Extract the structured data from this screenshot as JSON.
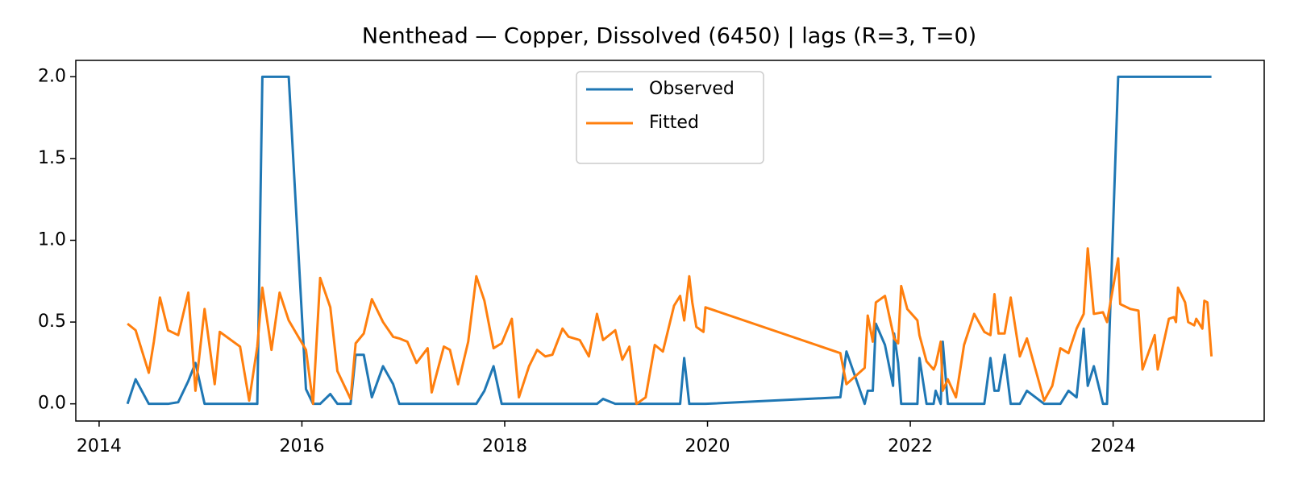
{
  "chart_data": {
    "type": "line",
    "title": "Nenthead — Copper, Dissolved (6450) | lags (R=3, T=0)",
    "x": [
      2014.28,
      2014.36,
      2014.49,
      2014.54,
      2014.6,
      2014.68,
      2014.78,
      2014.88,
      2014.95,
      2015.04,
      2015.14,
      2015.19,
      2015.39,
      2015.48,
      2015.56,
      2015.61,
      2015.7,
      2015.78,
      2015.87,
      2016.04,
      2016.11,
      2016.18,
      2016.28,
      2016.35,
      2016.48,
      2016.53,
      2016.61,
      2016.69,
      2016.8,
      2016.9,
      2016.96,
      2017.04,
      2017.13,
      2017.24,
      2017.28,
      2017.4,
      2017.46,
      2017.54,
      2017.64,
      2017.72,
      2017.8,
      2017.89,
      2017.97,
      2018.07,
      2018.14,
      2018.24,
      2018.32,
      2018.4,
      2018.47,
      2018.57,
      2018.63,
      2018.74,
      2018.83,
      2018.91,
      2018.97,
      2019.09,
      2019.16,
      2019.23,
      2019.3,
      2019.39,
      2019.48,
      2019.56,
      2019.67,
      2019.73,
      2019.77,
      2019.82,
      2019.85,
      2019.89,
      2019.96,
      2019.98,
      2021.31,
      2021.37,
      2021.55,
      2021.58,
      2021.63,
      2021.66,
      2021.75,
      2021.83,
      2021.84,
      2021.88,
      2021.91,
      2021.97,
      2022.07,
      2022.09,
      2022.16,
      2022.23,
      2022.25,
      2022.3,
      2022.32,
      2022.37,
      2022.45,
      2022.53,
      2022.63,
      2022.73,
      2022.79,
      2022.83,
      2022.87,
      2022.93,
      2022.99,
      2023.08,
      2023.15,
      2023.32,
      2023.4,
      2023.48,
      2023.56,
      2023.64,
      2023.71,
      2023.75,
      2023.81,
      2023.9,
      2023.94,
      2024.05,
      2024.07,
      2024.17,
      2024.25,
      2024.29,
      2024.41,
      2024.44,
      2024.55,
      2024.6,
      2024.62,
      2024.64,
      2024.71,
      2024.74,
      2024.8,
      2024.82,
      2024.88,
      2024.9,
      2024.93,
      2024.97
    ],
    "series": [
      {
        "name": "Observed",
        "color": "#1f77b4",
        "values": [
          0,
          0.15,
          0,
          0,
          0,
          0,
          0.01,
          0.14,
          0.25,
          0,
          0,
          0,
          0,
          0,
          0,
          2,
          2,
          2,
          2,
          0.09,
          0,
          0,
          0.06,
          0,
          0,
          0.3,
          0.3,
          0.04,
          0.23,
          0.12,
          0,
          0,
          0,
          0,
          0,
          0,
          0,
          0,
          0,
          0,
          0.08,
          0.23,
          0,
          0,
          0,
          0,
          0,
          0,
          0,
          0,
          0,
          0,
          0,
          0,
          0.03,
          0,
          0,
          0,
          0,
          0,
          0,
          0,
          0,
          0,
          0.28,
          0,
          0,
          0,
          0,
          0,
          0.04,
          0.32,
          0,
          0.08,
          0.08,
          0.49,
          0.36,
          0.11,
          0.43,
          0.25,
          0,
          0,
          0,
          0.28,
          0,
          0,
          0.08,
          0,
          0.38,
          0,
          0,
          0,
          0,
          0,
          0.28,
          0.08,
          0.08,
          0.3,
          0,
          0,
          0.08,
          0,
          0,
          0,
          0.08,
          0.04,
          0.46,
          0.11,
          0.23,
          0,
          0,
          2,
          2,
          2,
          2,
          2,
          2,
          2,
          2,
          2,
          2,
          2,
          2,
          2,
          2,
          2,
          2,
          2,
          2,
          2
        ]
      },
      {
        "name": "Fitted",
        "color": "#ff7f0e",
        "values": [
          0.49,
          0.45,
          0.19,
          0.38,
          0.65,
          0.45,
          0.42,
          0.68,
          0.08,
          0.58,
          0.12,
          0.44,
          0.35,
          0.02,
          0.35,
          0.71,
          0.33,
          0.68,
          0.51,
          0.33,
          0,
          0.77,
          0.59,
          0.2,
          0.03,
          0.37,
          0.43,
          0.64,
          0.5,
          0.41,
          0.4,
          0.38,
          0.25,
          0.34,
          0.07,
          0.35,
          0.33,
          0.12,
          0.38,
          0.78,
          0.63,
          0.34,
          0.37,
          0.52,
          0.04,
          0.23,
          0.33,
          0.29,
          0.3,
          0.46,
          0.41,
          0.39,
          0.29,
          0.55,
          0.39,
          0.45,
          0.27,
          0.35,
          0,
          0.04,
          0.36,
          0.32,
          0.6,
          0.66,
          0.51,
          0.78,
          0.62,
          0.47,
          0.44,
          0.59,
          0.31,
          0.12,
          0.22,
          0.54,
          0.38,
          0.62,
          0.66,
          0.43,
          0.4,
          0.37,
          0.72,
          0.58,
          0.51,
          0.42,
          0.26,
          0.21,
          0.24,
          0.38,
          0.08,
          0.15,
          0.04,
          0.36,
          0.55,
          0.44,
          0.42,
          0.67,
          0.43,
          0.43,
          0.65,
          0.29,
          0.4,
          0.02,
          0.11,
          0.34,
          0.31,
          0.46,
          0.55,
          0.95,
          0.55,
          0.56,
          0.5,
          0.89,
          0.61,
          0.58,
          0.57,
          0.21,
          0.42,
          0.21,
          0.52,
          0.53,
          0.5,
          0.71,
          0.62,
          0.5,
          0.48,
          0.52,
          0.46,
          0.63,
          0.62,
          0.29
        ]
      }
    ],
    "xlim": [
      2013.77,
      2025.49
    ],
    "ylim": [
      -0.105,
      2.1
    ],
    "xticks": [
      2014,
      2016,
      2018,
      2020,
      2022,
      2024
    ],
    "yticks": [
      {
        "value": 0,
        "label": "0.0"
      },
      0.5,
      {
        "value": 1,
        "label": "1.0"
      },
      1.5,
      {
        "value": 2,
        "label": "2.0"
      }
    ],
    "legend": "upper center"
  }
}
